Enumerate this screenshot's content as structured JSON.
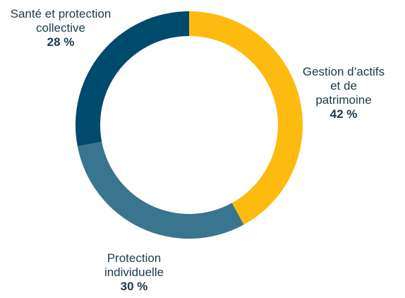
{
  "chart_data": {
    "type": "pie",
    "variant": "donut",
    "title": "",
    "slices": [
      {
        "label_lines": [
          "Gestion d’actifs",
          "et de",
          "patrimoine"
        ],
        "value": 42,
        "value_label": "42 %",
        "color": "#FDBB10"
      },
      {
        "label_lines": [
          "Protection",
          "individuelle"
        ],
        "value": 30,
        "value_label": "30 %",
        "color": "#3A758F"
      },
      {
        "label_lines": [
          "Santé et protection",
          "collective"
        ],
        "value": 28,
        "value_label": "28 %",
        "color": "#004A6D"
      }
    ],
    "start_angle_deg": 0,
    "direction": "clockwise",
    "legend": "none"
  }
}
